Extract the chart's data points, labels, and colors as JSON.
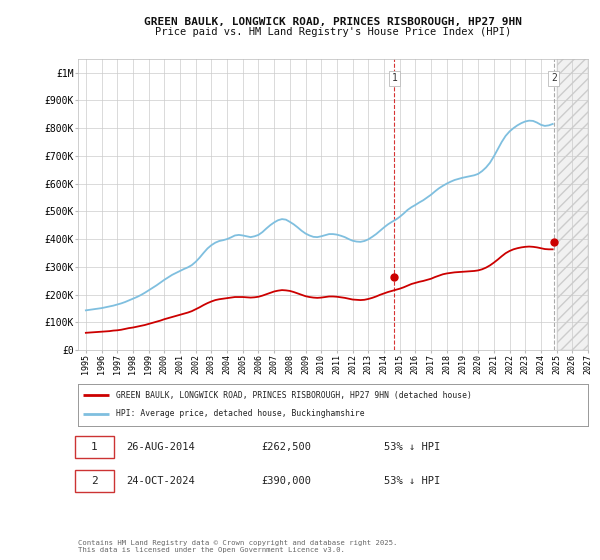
{
  "title_line1": "GREEN BAULK, LONGWICK ROAD, PRINCES RISBOROUGH, HP27 9HN",
  "title_line2": "Price paid vs. HM Land Registry's House Price Index (HPI)",
  "background_color": "#ffffff",
  "grid_color": "#cccccc",
  "hpi_color": "#7fbfdf",
  "price_color": "#cc0000",
  "ylim": [
    0,
    1050000
  ],
  "yticks": [
    0,
    100000,
    200000,
    300000,
    400000,
    500000,
    600000,
    700000,
    800000,
    900000,
    1000000
  ],
  "ytick_labels": [
    "£0",
    "£100K",
    "£200K",
    "£300K",
    "£400K",
    "£500K",
    "£600K",
    "£700K",
    "£800K",
    "£900K",
    "£1M"
  ],
  "sale1_date": "26-AUG-2014",
  "sale1_price": "£262,500",
  "sale1_note": "53% ↓ HPI",
  "sale1_label": "1",
  "sale2_date": "24-OCT-2024",
  "sale2_price": "£390,000",
  "sale2_note": "53% ↓ HPI",
  "sale2_label": "2",
  "legend_label1": "GREEN BAULK, LONGWICK ROAD, PRINCES RISBOROUGH, HP27 9HN (detached house)",
  "legend_label2": "HPI: Average price, detached house, Buckinghamshire",
  "footer": "Contains HM Land Registry data © Crown copyright and database right 2025.\nThis data is licensed under the Open Government Licence v3.0.",
  "hpi_x": [
    1995.0,
    1995.25,
    1995.5,
    1995.75,
    1996.0,
    1996.25,
    1996.5,
    1996.75,
    1997.0,
    1997.25,
    1997.5,
    1997.75,
    1998.0,
    1998.25,
    1998.5,
    1998.75,
    1999.0,
    1999.25,
    1999.5,
    1999.75,
    2000.0,
    2000.25,
    2000.5,
    2000.75,
    2001.0,
    2001.25,
    2001.5,
    2001.75,
    2002.0,
    2002.25,
    2002.5,
    2002.75,
    2003.0,
    2003.25,
    2003.5,
    2003.75,
    2004.0,
    2004.25,
    2004.5,
    2004.75,
    2005.0,
    2005.25,
    2005.5,
    2005.75,
    2006.0,
    2006.25,
    2006.5,
    2006.75,
    2007.0,
    2007.25,
    2007.5,
    2007.75,
    2008.0,
    2008.25,
    2008.5,
    2008.75,
    2009.0,
    2009.25,
    2009.5,
    2009.75,
    2010.0,
    2010.25,
    2010.5,
    2010.75,
    2011.0,
    2011.25,
    2011.5,
    2011.75,
    2012.0,
    2012.25,
    2012.5,
    2012.75,
    2013.0,
    2013.25,
    2013.5,
    2013.75,
    2014.0,
    2014.25,
    2014.5,
    2014.75,
    2015.0,
    2015.25,
    2015.5,
    2015.75,
    2016.0,
    2016.25,
    2016.5,
    2016.75,
    2017.0,
    2017.25,
    2017.5,
    2017.75,
    2018.0,
    2018.25,
    2018.5,
    2018.75,
    2019.0,
    2019.25,
    2019.5,
    2019.75,
    2020.0,
    2020.25,
    2020.5,
    2020.75,
    2021.0,
    2021.25,
    2021.5,
    2021.75,
    2022.0,
    2022.25,
    2022.5,
    2022.75,
    2023.0,
    2023.25,
    2023.5,
    2023.75,
    2024.0,
    2024.25,
    2024.5,
    2024.75
  ],
  "hpi_y": [
    143000,
    145000,
    147000,
    149000,
    151000,
    154000,
    157000,
    160000,
    164000,
    168000,
    173000,
    179000,
    185000,
    191000,
    198000,
    206000,
    215000,
    224000,
    233000,
    243000,
    253000,
    262000,
    271000,
    278000,
    285000,
    292000,
    298000,
    306000,
    318000,
    333000,
    350000,
    366000,
    378000,
    387000,
    393000,
    396000,
    400000,
    406000,
    413000,
    415000,
    413000,
    410000,
    407000,
    410000,
    415000,
    425000,
    438000,
    450000,
    460000,
    468000,
    472000,
    470000,
    462000,
    453000,
    442000,
    430000,
    420000,
    413000,
    408000,
    407000,
    410000,
    414000,
    418000,
    418000,
    416000,
    412000,
    407000,
    400000,
    394000,
    391000,
    390000,
    393000,
    399000,
    408000,
    418000,
    430000,
    442000,
    453000,
    462000,
    470000,
    480000,
    492000,
    505000,
    515000,
    523000,
    532000,
    540000,
    550000,
    560000,
    572000,
    583000,
    592000,
    600000,
    607000,
    613000,
    617000,
    621000,
    624000,
    627000,
    630000,
    635000,
    645000,
    658000,
    675000,
    698000,
    724000,
    750000,
    772000,
    788000,
    800000,
    810000,
    818000,
    824000,
    827000,
    826000,
    820000,
    812000,
    808000,
    810000,
    815000
  ],
  "price_x": [
    1995.0,
    1995.25,
    1995.5,
    1995.75,
    1996.0,
    1996.25,
    1996.5,
    1996.75,
    1997.0,
    1997.25,
    1997.5,
    1997.75,
    1998.0,
    1998.25,
    1998.5,
    1998.75,
    1999.0,
    1999.25,
    1999.5,
    1999.75,
    2000.0,
    2000.25,
    2000.5,
    2000.75,
    2001.0,
    2001.25,
    2001.5,
    2001.75,
    2002.0,
    2002.25,
    2002.5,
    2002.75,
    2003.0,
    2003.25,
    2003.5,
    2003.75,
    2004.0,
    2004.25,
    2004.5,
    2004.75,
    2005.0,
    2005.25,
    2005.5,
    2005.75,
    2006.0,
    2006.25,
    2006.5,
    2006.75,
    2007.0,
    2007.25,
    2007.5,
    2007.75,
    2008.0,
    2008.25,
    2008.5,
    2008.75,
    2009.0,
    2009.25,
    2009.5,
    2009.75,
    2010.0,
    2010.25,
    2010.5,
    2010.75,
    2011.0,
    2011.25,
    2011.5,
    2011.75,
    2012.0,
    2012.25,
    2012.5,
    2012.75,
    2013.0,
    2013.25,
    2013.5,
    2013.75,
    2014.0,
    2014.25,
    2014.5,
    2014.75,
    2015.0,
    2015.25,
    2015.5,
    2015.75,
    2016.0,
    2016.25,
    2016.5,
    2016.75,
    2017.0,
    2017.25,
    2017.5,
    2017.75,
    2018.0,
    2018.25,
    2018.5,
    2018.75,
    2019.0,
    2019.25,
    2019.5,
    2019.75,
    2020.0,
    2020.25,
    2020.5,
    2020.75,
    2021.0,
    2021.25,
    2021.5,
    2021.75,
    2022.0,
    2022.25,
    2022.5,
    2022.75,
    2023.0,
    2023.25,
    2023.5,
    2023.75,
    2024.0,
    2024.25,
    2024.5,
    2024.75
  ],
  "price_y": [
    62000,
    63000,
    64000,
    65000,
    66000,
    67000,
    68000,
    70000,
    71000,
    73000,
    76000,
    79000,
    81000,
    84000,
    87000,
    90000,
    94000,
    98000,
    102000,
    106000,
    111000,
    115000,
    119000,
    123000,
    127000,
    131000,
    135000,
    140000,
    147000,
    154000,
    162000,
    169000,
    175000,
    180000,
    183000,
    185000,
    187000,
    189000,
    191000,
    191000,
    191000,
    190000,
    189000,
    190000,
    192000,
    196000,
    201000,
    206000,
    211000,
    214000,
    216000,
    215000,
    213000,
    209000,
    204000,
    199000,
    194000,
    191000,
    189000,
    188000,
    189000,
    191000,
    193000,
    193000,
    192000,
    190000,
    188000,
    185000,
    182000,
    181000,
    180000,
    181000,
    184000,
    188000,
    193000,
    199000,
    204000,
    209000,
    213000,
    217000,
    221000,
    226000,
    232000,
    238000,
    242000,
    246000,
    249000,
    253000,
    257000,
    263000,
    268000,
    273000,
    276000,
    278000,
    280000,
    281000,
    282000,
    283000,
    284000,
    285000,
    287000,
    291000,
    297000,
    305000,
    315000,
    326000,
    338000,
    349000,
    357000,
    363000,
    367000,
    370000,
    372000,
    373000,
    372000,
    370000,
    367000,
    364000,
    363000,
    363000
  ],
  "sale1_x": 2014.66,
  "sale1_y": 262500,
  "sale2_x": 2024.82,
  "sale2_y": 390000,
  "vline1_x": 2014.66,
  "vline2_x": 2024.82,
  "xlim_left": 1994.5,
  "xlim_right": 2027.0,
  "hatch_start": 2025.0
}
